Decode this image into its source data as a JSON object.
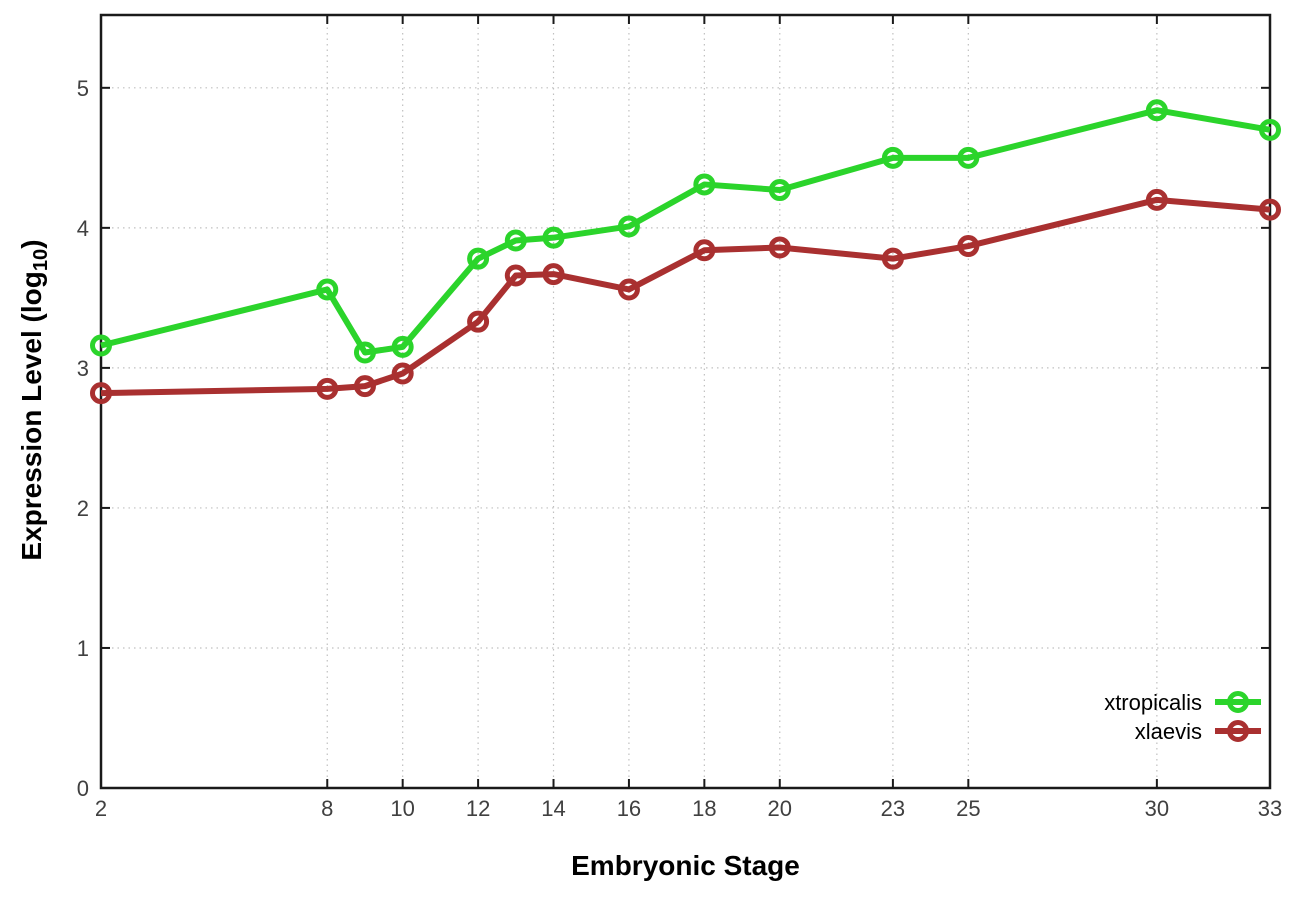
{
  "figure": {
    "background": "#ffffff",
    "border_color": "#1a1a1a",
    "grid_color": "#c0c0c0",
    "tick_label_color": "#404040",
    "legend_label_color": "#000000"
  },
  "chart_data": {
    "type": "line",
    "title": "",
    "xlabel": "Embryonic Stage",
    "ylabel": {
      "prefix": "Expression Level (log",
      "sub": "10",
      "suffix": ")"
    },
    "xlim": [
      2,
      33
    ],
    "ylim": [
      0,
      5.52
    ],
    "x_ticks": [
      2,
      8,
      10,
      12,
      14,
      16,
      18,
      20,
      23,
      25,
      30,
      33
    ],
    "y_ticks": [
      0,
      1,
      2,
      3,
      4,
      5
    ],
    "grid": true,
    "legend_position": "bottom-right",
    "x": [
      2,
      8,
      9,
      10,
      12,
      13,
      14,
      16,
      18,
      20,
      23,
      25,
      30,
      33
    ],
    "series": [
      {
        "name": "xtropicalis",
        "color": "#2bd42b",
        "values": [
          3.16,
          3.56,
          3.11,
          3.15,
          3.78,
          3.91,
          3.93,
          4.01,
          4.31,
          4.27,
          4.5,
          4.5,
          4.84,
          4.7
        ]
      },
      {
        "name": "xlaevis",
        "color": "#a93030",
        "values": [
          2.82,
          2.85,
          2.87,
          2.96,
          3.33,
          3.66,
          3.67,
          3.56,
          3.84,
          3.86,
          3.78,
          3.87,
          4.2,
          4.13
        ]
      }
    ]
  }
}
